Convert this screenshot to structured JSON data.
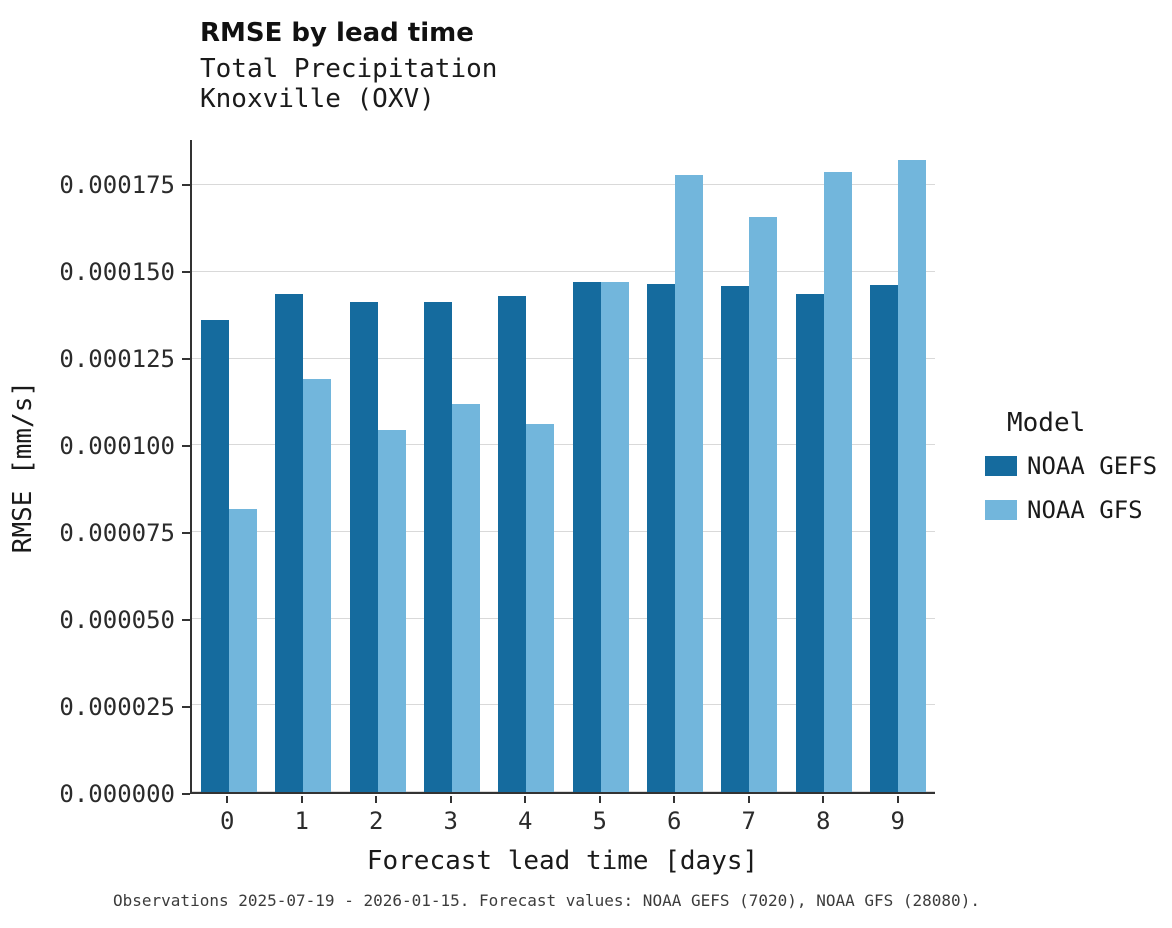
{
  "chart_data": {
    "type": "bar",
    "title": "RMSE by lead time",
    "subtitle_lines": [
      "Total Precipitation",
      "Knoxville (OXV)"
    ],
    "xlabel": "Forecast lead time [days]",
    "ylabel": "RMSE [mm/s]",
    "legend_title": "Model",
    "legend_position": "right",
    "grid": true,
    "categories": [
      "0",
      "1",
      "2",
      "3",
      "4",
      "5",
      "6",
      "7",
      "8",
      "9"
    ],
    "series": [
      {
        "name": "NOAA GEFS",
        "color": "#156b9e",
        "values": [
          0.000136,
          0.0001435,
          0.0001412,
          0.0001412,
          0.000143,
          0.000147,
          0.0001465,
          0.000146,
          0.0001435,
          0.0001463
        ]
      },
      {
        "name": "NOAA GFS",
        "color": "#72b6dc",
        "values": [
          8.15e-05,
          0.000119,
          0.0001045,
          0.0001118,
          0.0001062,
          0.000147,
          0.0001778,
          0.0001657,
          0.0001787,
          0.0001822
        ]
      }
    ],
    "yticks": [
      {
        "value": 0.0,
        "label": "0.000000"
      },
      {
        "value": 2.5e-05,
        "label": "0.000025"
      },
      {
        "value": 5e-05,
        "label": "0.000050"
      },
      {
        "value": 7.5e-05,
        "label": "0.000075"
      },
      {
        "value": 0.0001,
        "label": "0.000100"
      },
      {
        "value": 0.000125,
        "label": "0.000125"
      },
      {
        "value": 0.00015,
        "label": "0.000150"
      },
      {
        "value": 0.000175,
        "label": "0.000175"
      }
    ],
    "ylim": [
      0,
      0.000188
    ],
    "caption": "Observations 2025-07-19 - 2026-01-15. Forecast values: NOAA GEFS (7020), NOAA GFS (28080)."
  }
}
